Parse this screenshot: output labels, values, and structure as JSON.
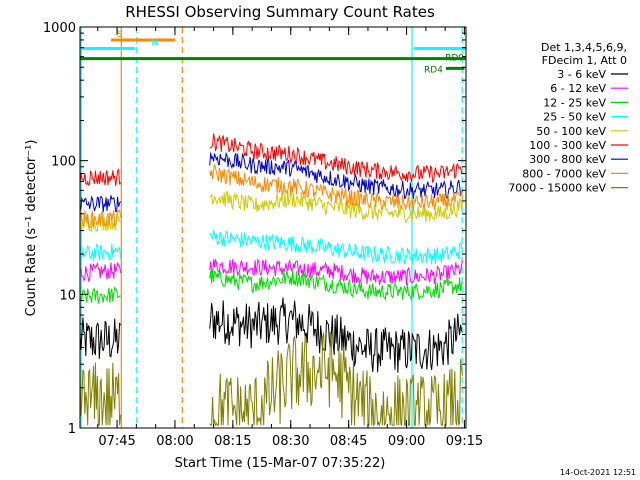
{
  "chart_data": {
    "type": "line",
    "title": "RHESSI Observing Summary Count Rates",
    "xlabel": "Start Time (15-Mar-07 07:35:22)",
    "ylabel": "Count Rate (s⁻¹ detector⁻¹)",
    "x_unit": "minutes after 07:35:22",
    "xlim": [
      0,
      100
    ],
    "ylim": [
      1,
      1000
    ],
    "yscale": "log",
    "x_ticks": [
      {
        "value": 9.6,
        "label": "07:45"
      },
      {
        "value": 24.6,
        "label": "08:00"
      },
      {
        "value": 39.6,
        "label": "08:15"
      },
      {
        "value": 54.6,
        "label": "08:30"
      },
      {
        "value": 69.6,
        "label": "08:45"
      },
      {
        "value": 84.6,
        "label": "09:00"
      },
      {
        "value": 99.6,
        "label": "09:15"
      }
    ],
    "y_ticks": [
      {
        "value": 1,
        "label": "1"
      },
      {
        "value": 10,
        "label": "10"
      },
      {
        "value": 100,
        "label": "100"
      },
      {
        "value": 1000,
        "label": "1000"
      }
    ],
    "legend_header": [
      "Det 1,3,4,5,6,9,",
      "FDecim 1, Att 0"
    ],
    "timestamp": "14-Oct-2021 12:51",
    "series": [
      {
        "name": "3 - 6 keV",
        "color": "#000000",
        "x": [
          0,
          10,
          34,
          45,
          55,
          65,
          75,
          85,
          94,
          100
        ],
        "values": [
          4.5,
          4.5,
          6.5,
          5.8,
          6.5,
          5.0,
          3.8,
          3.8,
          4.0,
          5.5
        ]
      },
      {
        "name": "6 - 12 keV",
        "color": "#ff00ff",
        "x": [
          0,
          10,
          34,
          45,
          55,
          65,
          75,
          85,
          94,
          100
        ],
        "values": [
          14.5,
          15,
          16.5,
          16,
          15.5,
          15,
          13.5,
          13.5,
          14,
          16
        ]
      },
      {
        "name": "12 - 25 keV",
        "color": "#00dd00",
        "x": [
          0,
          10,
          34,
          45,
          55,
          65,
          75,
          85,
          94,
          100
        ],
        "values": [
          9.5,
          10,
          13.5,
          12,
          13.5,
          12,
          10.5,
          10.5,
          11,
          12
        ]
      },
      {
        "name": "25 - 50 keV",
        "color": "#00ffff",
        "x": [
          0,
          10,
          34,
          45,
          55,
          65,
          75,
          85,
          94,
          100
        ],
        "values": [
          20,
          21,
          27,
          25,
          24,
          22,
          20,
          19.5,
          19.5,
          22
        ]
      },
      {
        "name": "50 - 100 keV",
        "color": "#cccc00",
        "x": [
          0,
          10,
          34,
          45,
          55,
          65,
          75,
          85,
          94,
          100
        ],
        "values": [
          34,
          35,
          55,
          46,
          52,
          45,
          41,
          40,
          40,
          47
        ]
      },
      {
        "name": "100 - 300 keV",
        "color": "#ff0000",
        "x": [
          0,
          10,
          34,
          45,
          55,
          65,
          75,
          85,
          94,
          100
        ],
        "values": [
          75,
          75,
          140,
          118,
          112,
          95,
          85,
          80,
          80,
          90
        ]
      },
      {
        "name": "300 - 800 keV",
        "color": "#0000cc",
        "x": [
          0,
          10,
          34,
          45,
          55,
          65,
          75,
          85,
          94,
          100
        ],
        "values": [
          47,
          48,
          108,
          92,
          88,
          74,
          64,
          60,
          60,
          65
        ]
      },
      {
        "name": "800 - 7000 keV",
        "color": "#ff8800",
        "x": [
          0,
          10,
          34,
          45,
          55,
          65,
          75,
          85,
          94,
          100
        ],
        "values": [
          36,
          37,
          82,
          68,
          64,
          56,
          50,
          48,
          49,
          52
        ]
      },
      {
        "name": "7000 - 15000 keV",
        "color": "#808000",
        "x": [
          0,
          10,
          34,
          45,
          55,
          65,
          75,
          85,
          94,
          100
        ],
        "values": [
          1.6,
          1.6,
          1.4,
          1.3,
          2.5,
          2.8,
          1.3,
          1.3,
          1.3,
          1.8
        ]
      }
    ],
    "markers": [
      {
        "label": "S",
        "kind": "saeo_bar",
        "color": "#ff8800",
        "x": [
          8,
          24.6
        ],
        "y": 800
      },
      {
        "label": "N",
        "kind": "night_bar",
        "color": "#00ffff",
        "x": [
          0,
          14.2
        ],
        "y": 690
      },
      {
        "label": "",
        "kind": "night_bar",
        "color": "#00ffff",
        "x": [
          86.5,
          100
        ],
        "y": 690
      },
      {
        "label": "RD0",
        "kind": "decim_bar",
        "color": "#008000",
        "x": [
          0,
          100
        ],
        "y": 580
      },
      {
        "label": "RD4",
        "kind": "decim_bar",
        "color": "#008000",
        "x": [
          94.8,
          99.6
        ],
        "y": 490
      }
    ],
    "vlines": [
      {
        "x": 0.3,
        "color": "#00ffff",
        "style": "solid"
      },
      {
        "x": 10.7,
        "color": "#ff8800",
        "style": "solid"
      },
      {
        "x": 14.7,
        "color": "#00ffff",
        "style": "dashed"
      },
      {
        "x": 26.5,
        "color": "#ff8800",
        "style": "dashed"
      },
      {
        "x": 86.0,
        "color": "#00ffff",
        "style": "solid"
      },
      {
        "x": 99.0,
        "color": "#00ffff",
        "style": "dashed"
      }
    ]
  }
}
